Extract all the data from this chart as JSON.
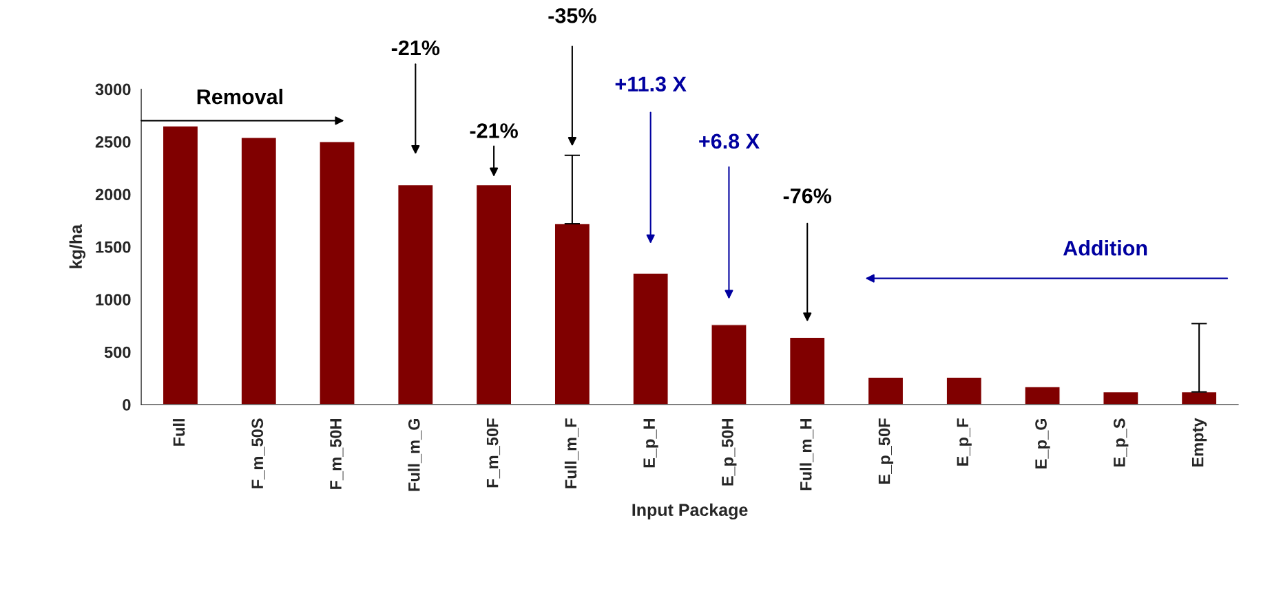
{
  "chart_data": {
    "type": "bar",
    "xlabel": "Input Package",
    "ylabel": "kg/ha",
    "categories": [
      "Full",
      "F_m_50S",
      "F_m_50H",
      "Full_m_G",
      "F_m_50F",
      "Full_m_F",
      "E_p_H",
      "E_p_50H",
      "Full_m_H",
      "E_p_50F",
      "E_p_F",
      "E_p_G",
      "E_p_S",
      "Empty"
    ],
    "values": [
      2650,
      2540,
      2500,
      2090,
      2090,
      1720,
      1250,
      760,
      640,
      260,
      260,
      170,
      120,
      120
    ],
    "errors": [
      null,
      null,
      null,
      null,
      null,
      [
        1720,
        2370
      ],
      null,
      null,
      null,
      null,
      null,
      null,
      null,
      [
        120,
        770
      ]
    ],
    "color": "#800000",
    "ylim": [
      0,
      3000
    ],
    "yticks": [
      0,
      500,
      1000,
      1500,
      2000,
      2500,
      3000
    ],
    "grid": false,
    "annotations": [
      "-21%",
      "-21%",
      "-35%",
      "+11.3 X",
      "+6.8 X",
      "-76%",
      "Removal",
      "Addition"
    ]
  }
}
